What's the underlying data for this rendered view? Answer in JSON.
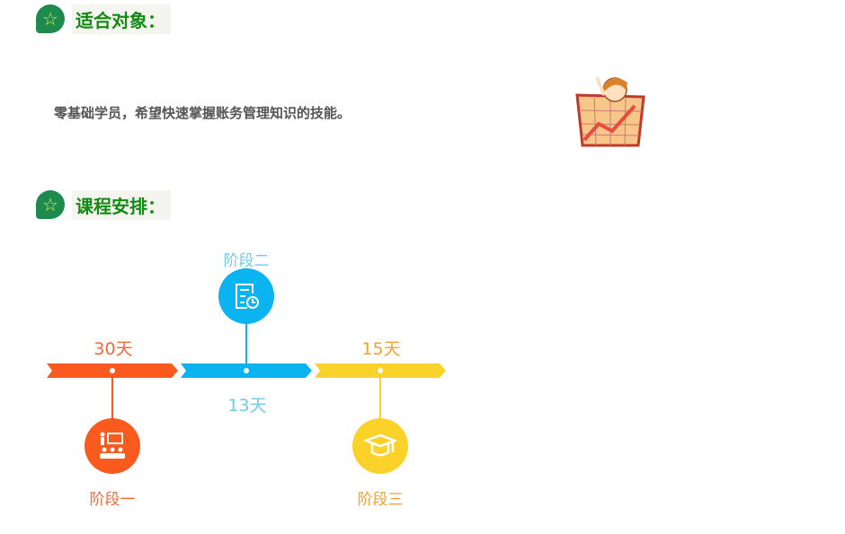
{
  "sections": [
    {
      "title": "适合对象：",
      "icon": "star-icon"
    },
    {
      "title": "课程安排：",
      "icon": "star-icon"
    }
  ],
  "audience_text": "零基础学员，希望快速掌握账务管理知识的技能。",
  "timeline": {
    "stages": [
      {
        "name": "阶段一",
        "days": "30天",
        "color": "#fa5a1e",
        "icon": "teacher-classroom-icon"
      },
      {
        "name": "阶段二",
        "days": "13天",
        "color": "#0bb4f0",
        "icon": "document-clock-icon"
      },
      {
        "name": "阶段三",
        "days": "15天",
        "color": "#fbd22a",
        "icon": "graduation-cap-icon"
      }
    ],
    "label_colors": {
      "stage1": "#f06a3a",
      "stage2": "#6fcbe8",
      "stage3": "#f5a030"
    }
  }
}
